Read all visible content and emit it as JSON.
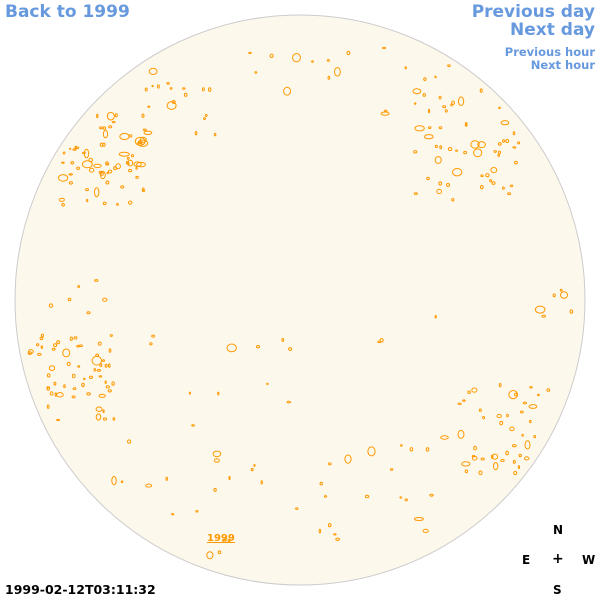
{
  "nav": {
    "back": "Back to 1999",
    "previous_day": "Previous day",
    "next_day": "Next day",
    "previous_hour": "Previous hour",
    "next_hour": "Next hour"
  },
  "disk": {
    "year_label": "1999",
    "fill_color": "#fdf8ec",
    "contour_color": "#ff9900"
  },
  "compass": {
    "north": "N",
    "east": "E",
    "center": "+",
    "west": "W",
    "south": "S"
  },
  "timestamp": "1999-02-12T03:11:32"
}
